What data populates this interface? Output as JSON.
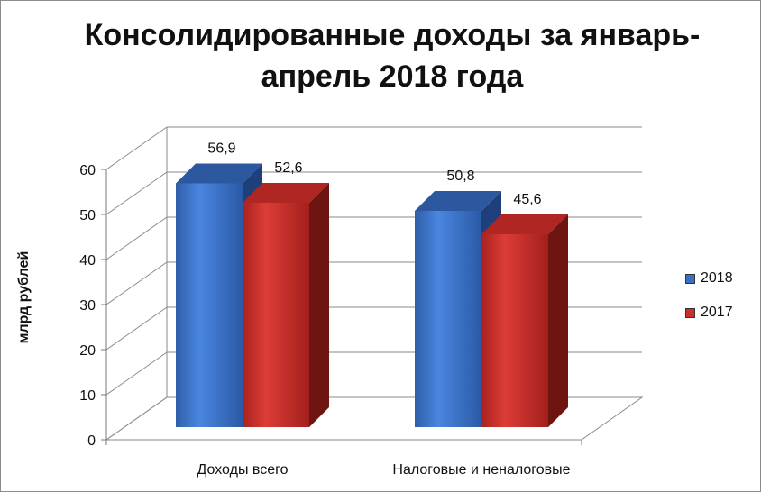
{
  "chart_data": {
    "type": "bar",
    "title": "Консолидированные доходы за январь-апрель 2018 года",
    "xlabel": "",
    "ylabel": "млрд рублей",
    "categories": [
      "Доходы всего",
      "Налоговые и неналоговые"
    ],
    "series": [
      {
        "name": "2018",
        "values": [
          56.9,
          50.8
        ],
        "labels": [
          "56,9",
          "50,8"
        ],
        "color": "#3a6fc4"
      },
      {
        "name": "2017",
        "values": [
          52.6,
          45.6
        ],
        "labels": [
          "52,6",
          "45,6"
        ],
        "color": "#c9302c"
      }
    ],
    "yticks": [
      "0",
      "10",
      "20",
      "30",
      "40",
      "50",
      "60"
    ],
    "ylim": [
      0,
      60
    ],
    "grid": true,
    "legend": "right",
    "style": "3d-clustered-bar"
  }
}
